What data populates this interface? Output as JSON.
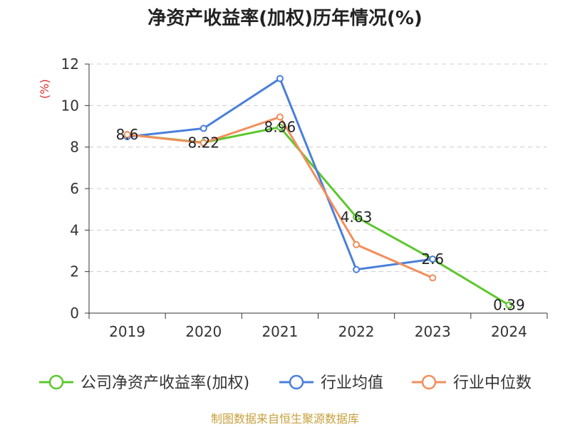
{
  "chart_data": {
    "type": "line",
    "title": "净资产收益率(加权)历年情况(%)",
    "ylabel": "(%)",
    "xlabel": "",
    "ylim": [
      0,
      12
    ],
    "yticks": [
      0,
      2,
      4,
      6,
      8,
      10,
      12
    ],
    "grid": true,
    "legend_position": "bottom",
    "categories": [
      "2019",
      "2020",
      "2021",
      "2022",
      "2023",
      "2024"
    ],
    "series": [
      {
        "name": "公司净资产收益率(加权)",
        "color": "#5cc72d",
        "values": [
          8.6,
          8.22,
          8.96,
          4.63,
          2.6,
          0.39
        ],
        "labels": [
          "8.6",
          "8.22",
          "8.96",
          "4.63",
          "2.6",
          "0.39"
        ]
      },
      {
        "name": "行业均值",
        "color": "#4a7fdb",
        "values": [
          8.5,
          8.9,
          11.3,
          2.1,
          2.6,
          null
        ]
      },
      {
        "name": "行业中位数",
        "color": "#f28e5c",
        "values": [
          8.6,
          8.2,
          9.45,
          3.3,
          1.7,
          null
        ]
      }
    ],
    "source": "制图数据来自恒生聚源数据库",
    "source_color": "#c8a03c",
    "ylabel_color": "#e03030"
  }
}
